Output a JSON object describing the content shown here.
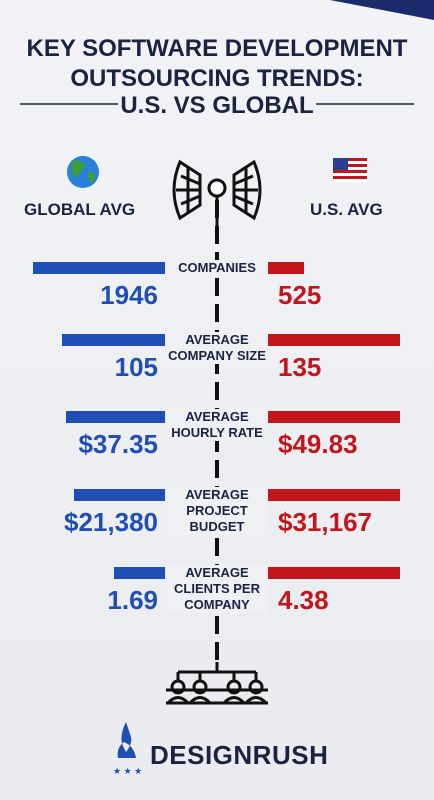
{
  "chart_data": {
    "type": "butterfly",
    "title": "KEY SOFTWARE DEVELOPMENT OUTSOURCING TRENDS:",
    "subtitle": "U.S. VS GLOBAL",
    "categories": [
      "COMPANIES",
      "AVERAGE COMPANY SIZE",
      "AVERAGE HOURLY RATE",
      "AVERAGE PROJECT BUDGET",
      "AVERAGE CLIENTS PER COMPANY"
    ],
    "series": [
      {
        "name": "GLOBAL AVG",
        "color": "#1f4fb4",
        "values": [
          1946,
          105,
          37.35,
          21380,
          1.69
        ],
        "value_labels": [
          "1946",
          "105",
          "$37.35",
          "$21,380",
          "1.69"
        ]
      },
      {
        "name": "U.S. AVG",
        "color": "#c3161c",
        "values": [
          525,
          135,
          49.83,
          31167,
          4.38
        ],
        "value_labels": [
          "525",
          "135",
          "$49.83",
          "$31,167",
          "4.38"
        ]
      }
    ],
    "brand": "DESIGNRUSH"
  }
}
